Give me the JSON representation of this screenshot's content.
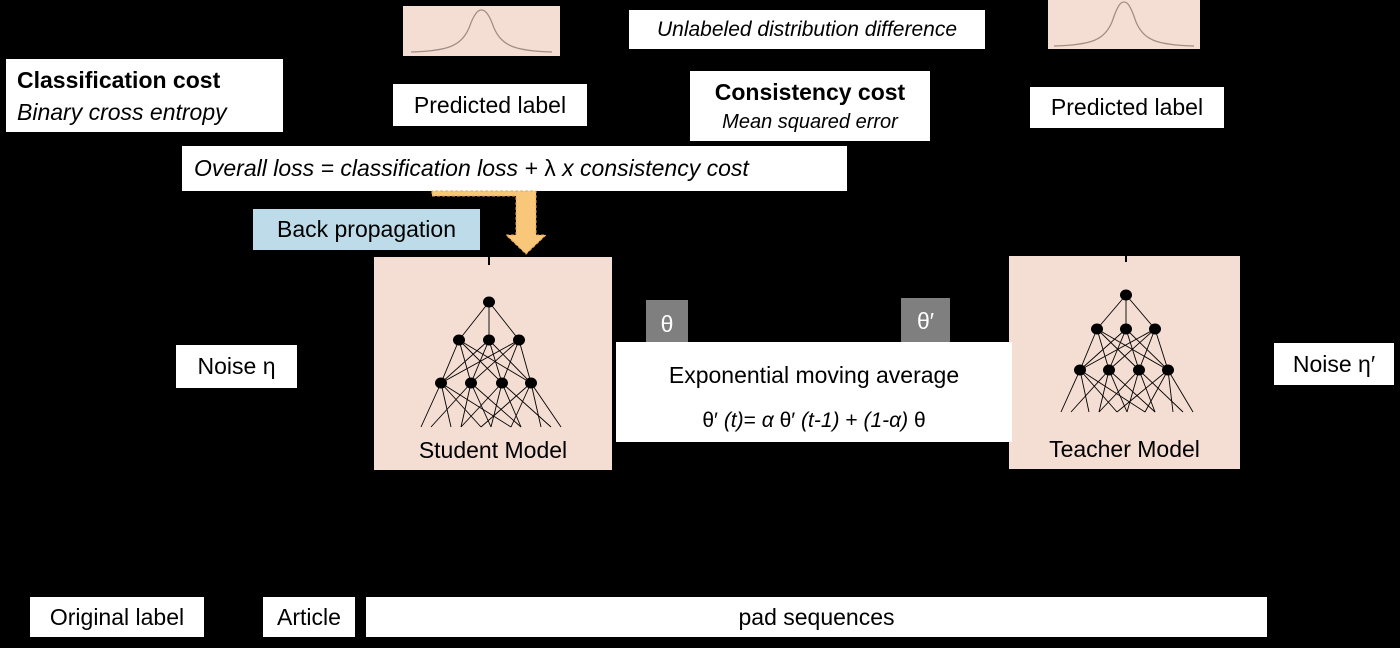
{
  "classification": {
    "title": "Classification cost",
    "subtitle": "Binary cross entropy"
  },
  "student_pred_label": "Predicted label",
  "teacher_pred_label": "Predicted label",
  "unlabeled_diff": "Unlabeled distribution difference",
  "consistency": {
    "title": "Consistency cost",
    "subtitle": "Mean squared error"
  },
  "overall_loss": {
    "prefix": "Overall loss = classification loss + ",
    "lambda": "λ",
    "suffix": " x consistency cost"
  },
  "back_propagation": "Back propagation",
  "student_model": "Student Model",
  "teacher_model": "Teacher Model",
  "noise_student": "Noise η",
  "noise_teacher": "Noise η′",
  "theta": "θ",
  "theta_prime": "θ′",
  "ema": {
    "title": "Exponential moving average",
    "f1": "θ′ ",
    "f2": "(t)",
    "f3": "= ",
    "f4": "α",
    "f5": " θ′ ",
    "f6": "(t-1)",
    "f7": " + ",
    "f8": "(1-α)",
    "f9": " θ"
  },
  "original_label": "Original label",
  "article": "Article",
  "pad_sequences": "pad sequences",
  "colors": {
    "peach": "#f4ddd2",
    "backprop_blue": "#bddbe9",
    "arrow_orange": "#f8c77a",
    "theta_grey": "#7f7f7f"
  }
}
